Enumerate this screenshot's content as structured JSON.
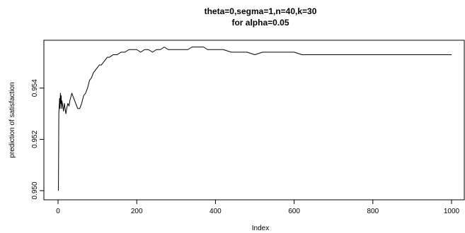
{
  "chart_data": {
    "type": "line",
    "title_line1": "theta=0,segma=1,n=40,k=30",
    "title_line2": "for alpha=0.05",
    "xlabel": "Index",
    "ylabel": "prediction of satisfaction",
    "xlim": [
      1,
      1000
    ],
    "ylim": [
      0.95,
      0.9557
    ],
    "x_ticks": [
      0,
      200,
      400,
      600,
      800,
      1000
    ],
    "x_tick_labels": [
      "0",
      "200",
      "400",
      "600",
      "800",
      "1000"
    ],
    "y_ticks": [
      0.95,
      0.952,
      0.954
    ],
    "y_tick_labels": [
      "0.950",
      "0.952",
      "0.954"
    ],
    "grid": false,
    "series": [
      {
        "x": [
          1,
          2,
          3,
          4,
          5,
          6,
          7,
          8,
          9,
          10,
          12,
          14,
          16,
          18,
          20,
          22,
          25,
          28,
          30,
          35,
          40,
          45,
          50,
          55,
          60,
          65,
          70,
          75,
          80,
          85,
          90,
          95,
          100,
          105,
          110,
          115,
          120,
          125,
          130,
          140,
          150,
          160,
          170,
          180,
          190,
          200,
          210,
          220,
          230,
          240,
          250,
          260,
          270,
          280,
          290,
          300,
          310,
          320,
          330,
          340,
          350,
          360,
          370,
          380,
          390,
          400,
          410,
          420,
          440,
          460,
          480,
          500,
          520,
          540,
          560,
          580,
          600,
          620,
          640,
          660,
          680,
          700,
          720,
          740,
          760,
          780,
          800,
          820,
          840,
          860,
          880,
          900,
          920,
          940,
          960,
          980,
          1000
        ],
        "y": [
          0.95,
          0.953,
          0.9533,
          0.9536,
          0.9532,
          0.9538,
          0.9534,
          0.9537,
          0.9532,
          0.9535,
          0.9533,
          0.9531,
          0.9534,
          0.9532,
          0.953,
          0.9532,
          0.9534,
          0.9533,
          0.9535,
          0.9538,
          0.9536,
          0.9534,
          0.9532,
          0.9532,
          0.9534,
          0.9537,
          0.9538,
          0.954,
          0.9543,
          0.9544,
          0.9546,
          0.9547,
          0.9548,
          0.9549,
          0.9549,
          0.955,
          0.9551,
          0.9552,
          0.9552,
          0.9553,
          0.9553,
          0.9554,
          0.9554,
          0.9555,
          0.9555,
          0.9555,
          0.9554,
          0.9555,
          0.9555,
          0.9554,
          0.9555,
          0.9555,
          0.9556,
          0.9555,
          0.9555,
          0.9555,
          0.9555,
          0.9555,
          0.9555,
          0.9556,
          0.9556,
          0.9556,
          0.9556,
          0.9555,
          0.9555,
          0.9555,
          0.9555,
          0.9555,
          0.9554,
          0.9554,
          0.9554,
          0.9553,
          0.9554,
          0.9554,
          0.9554,
          0.9554,
          0.9554,
          0.9553,
          0.9553,
          0.9553,
          0.9553,
          0.9553,
          0.9553,
          0.9553,
          0.9553,
          0.9553,
          0.9553,
          0.9553,
          0.9553,
          0.9553,
          0.9553,
          0.9553,
          0.9553,
          0.9553,
          0.9553,
          0.9553,
          0.9553
        ]
      }
    ]
  }
}
